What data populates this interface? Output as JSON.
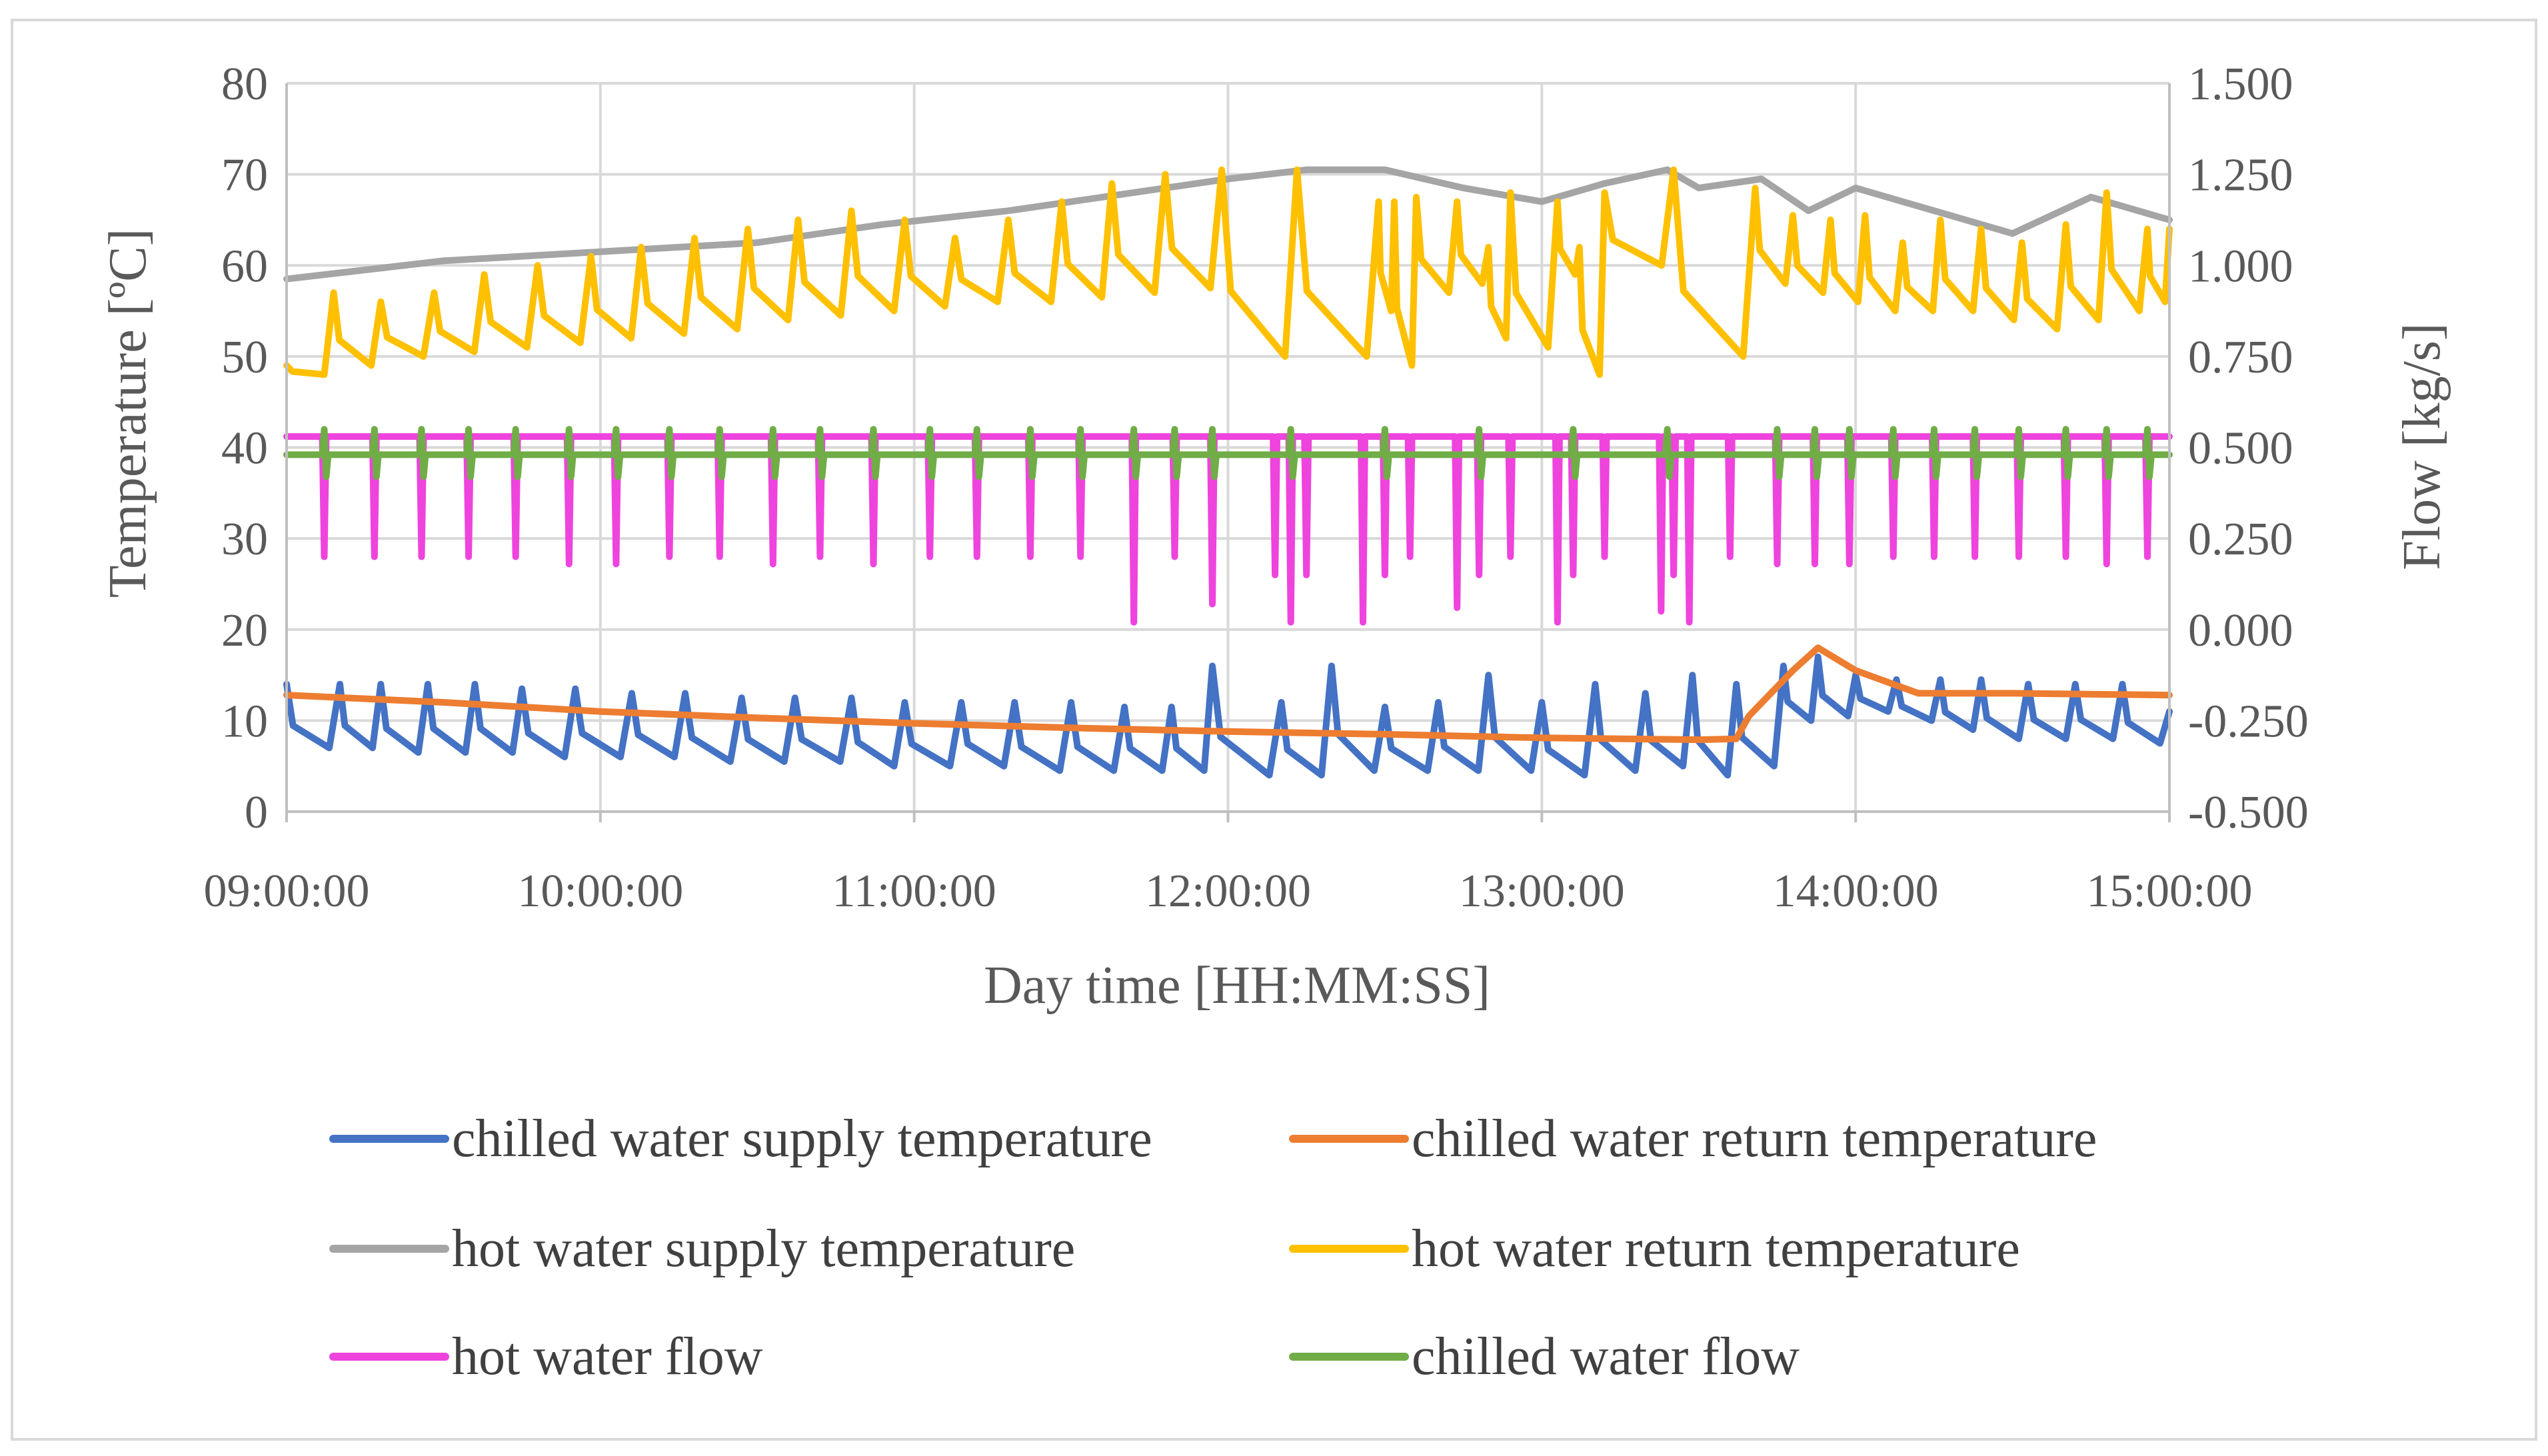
{
  "chart_data": {
    "type": "line",
    "title": "",
    "xlabel": "Day time [HH:MM:SS]",
    "ylabel": "Temperature [ºC]",
    "y2label": "Flow [kg/s]",
    "x_ticks": [
      "09:00:00",
      "10:00:00",
      "11:00:00",
      "12:00:00",
      "13:00:00",
      "14:00:00",
      "15:00:00"
    ],
    "xlim_hours": [
      9,
      15
    ],
    "ylim": [
      0,
      80
    ],
    "y_ticks": [
      "0",
      "10",
      "20",
      "30",
      "40",
      "50",
      "60",
      "70",
      "80"
    ],
    "y2lim": [
      -0.5,
      1.5
    ],
    "y2_ticks": [
      "-0.500",
      "-0.250",
      "0.000",
      "0.250",
      "0.500",
      "0.750",
      "1.000",
      "1.250",
      "1.500"
    ],
    "grid": true,
    "legend_position": "bottom",
    "series": [
      {
        "name": "chilled water supply temperature",
        "color": "#4472C4",
        "axis": "left",
        "style": "sawtooth",
        "peaks": [
          9.0,
          9.17,
          9.3,
          9.45,
          9.6,
          9.75,
          9.92,
          10.1,
          10.27,
          10.45,
          10.62,
          10.8,
          10.97,
          11.15,
          11.32,
          11.5,
          11.67,
          11.82,
          11.95,
          12.17,
          12.33,
          12.5,
          12.67,
          12.83,
          13.0,
          13.17,
          13.33,
          13.48,
          13.62,
          13.77,
          13.88,
          14.0,
          14.13,
          14.27,
          14.4,
          14.55,
          14.7,
          14.85,
          15.0
        ],
        "peak_values": [
          14,
          14,
          14,
          14,
          14,
          13.5,
          13.5,
          13,
          13,
          12.5,
          12.5,
          12.5,
          12,
          12,
          12,
          12,
          11.5,
          11.5,
          16,
          12,
          16,
          11.5,
          12,
          15,
          12,
          14,
          13,
          15,
          14,
          16,
          17,
          15,
          14.5,
          14.5,
          14.5,
          14,
          14,
          14,
          11
        ],
        "trough_values": [
          7,
          7,
          6.5,
          6.5,
          6.5,
          6,
          6,
          6,
          5.5,
          5.5,
          5.5,
          5,
          5,
          5,
          4.5,
          4.5,
          4.5,
          4.5,
          4,
          4,
          4.5,
          4.5,
          4.5,
          4.5,
          4,
          4.5,
          5,
          4,
          5,
          10,
          10.5,
          11,
          10,
          9,
          8,
          8,
          8,
          7.5,
          7.5
        ]
      },
      {
        "name": "chilled water return temperature",
        "color": "#ED7D31",
        "axis": "left",
        "style": "smooth",
        "x": [
          9.0,
          9.5,
          10.0,
          10.5,
          11.0,
          11.5,
          12.0,
          12.5,
          13.0,
          13.5,
          13.62,
          13.66,
          13.8,
          13.88,
          14.0,
          14.2,
          14.5,
          15.0
        ],
        "values": [
          12.8,
          12.0,
          11.0,
          10.3,
          9.7,
          9.2,
          8.8,
          8.5,
          8.1,
          7.9,
          8.0,
          10.5,
          15.5,
          18.0,
          15.5,
          13.0,
          13.0,
          12.8
        ]
      },
      {
        "name": "hot water supply temperature",
        "color": "#A5A5A5",
        "axis": "left",
        "style": "smooth",
        "x": [
          9.0,
          9.5,
          10.0,
          10.5,
          10.9,
          11.3,
          11.6,
          12.0,
          12.25,
          12.5,
          12.75,
          13.0,
          13.2,
          13.4,
          13.5,
          13.7,
          13.85,
          14.0,
          14.2,
          14.5,
          14.75,
          15.0
        ],
        "values": [
          58.5,
          60.5,
          61.5,
          62.5,
          64.5,
          66.0,
          67.5,
          69.5,
          70.5,
          70.5,
          68.5,
          67.0,
          69.0,
          70.5,
          68.5,
          69.5,
          66.0,
          68.5,
          66.5,
          63.5,
          67.5,
          65.0
        ]
      },
      {
        "name": "hot water return temperature",
        "color": "#FFC000",
        "axis": "left",
        "style": "sawtooth",
        "peaks": [
          9.0,
          9.15,
          9.3,
          9.47,
          9.63,
          9.8,
          9.97,
          10.13,
          10.3,
          10.47,
          10.63,
          10.8,
          10.97,
          11.13,
          11.3,
          11.47,
          11.63,
          11.8,
          11.98,
          12.22,
          12.48,
          12.53,
          12.6,
          12.73,
          12.83,
          12.9,
          13.05,
          13.12,
          13.2,
          13.42,
          13.68,
          13.8,
          13.92,
          14.03,
          14.15,
          14.27,
          14.4,
          14.53,
          14.67,
          14.8,
          14.93,
          15.0
        ],
        "peak_values": [
          49,
          57,
          56,
          57,
          59,
          60,
          61,
          62,
          63,
          64,
          65,
          66,
          65,
          63,
          65,
          67,
          69,
          70,
          70.5,
          70.5,
          67,
          67,
          67.5,
          67,
          62,
          68,
          67,
          62,
          68,
          70.5,
          68.5,
          65.5,
          65,
          65.5,
          62.5,
          65,
          64,
          62.5,
          64.5,
          68,
          64,
          64
        ],
        "trough_values": [
          48,
          49,
          50,
          50.5,
          51,
          51.5,
          52,
          52.5,
          53,
          54,
          54.5,
          55,
          55.5,
          56,
          56,
          56.5,
          57,
          57.5,
          50,
          50,
          55,
          49,
          57,
          58,
          52,
          51,
          59,
          48,
          60,
          50,
          58,
          57,
          56,
          55,
          55,
          55,
          54,
          53,
          54,
          55,
          56,
          56
        ]
      },
      {
        "name": "hot water flow",
        "color": "#EE44DD",
        "axis": "right",
        "style": "dips",
        "base": 0.53,
        "dips_x": [
          9.12,
          9.28,
          9.43,
          9.58,
          9.73,
          9.9,
          10.05,
          10.22,
          10.38,
          10.55,
          10.7,
          10.87,
          11.05,
          11.2,
          11.37,
          11.53,
          11.7,
          11.83,
          11.95,
          12.15,
          12.2,
          12.25,
          12.43,
          12.5,
          12.58,
          12.73,
          12.8,
          12.9,
          13.05,
          13.1,
          13.2,
          13.38,
          13.42,
          13.47,
          13.6,
          13.75,
          13.87,
          13.98,
          14.12,
          14.25,
          14.38,
          14.52,
          14.67,
          14.8,
          14.93
        ],
        "dips_values": [
          0.2,
          0.2,
          0.2,
          0.2,
          0.2,
          0.18,
          0.18,
          0.2,
          0.2,
          0.18,
          0.2,
          0.18,
          0.2,
          0.2,
          0.2,
          0.2,
          0.02,
          0.2,
          0.07,
          0.15,
          0.02,
          0.15,
          0.02,
          0.15,
          0.2,
          0.06,
          0.15,
          0.2,
          0.02,
          0.15,
          0.2,
          0.05,
          0.15,
          0.02,
          0.2,
          0.18,
          0.18,
          0.18,
          0.2,
          0.2,
          0.2,
          0.2,
          0.2,
          0.18,
          0.2
        ]
      },
      {
        "name": "chilled water flow",
        "color": "#70AD47",
        "axis": "right",
        "style": "spikes",
        "base": 0.48,
        "spikes_x": [
          9.12,
          9.28,
          9.43,
          9.58,
          9.73,
          9.9,
          10.05,
          10.22,
          10.38,
          10.55,
          10.7,
          10.87,
          11.05,
          11.2,
          11.37,
          11.53,
          11.7,
          11.83,
          11.95,
          12.2,
          12.5,
          12.8,
          13.1,
          13.4,
          13.75,
          13.87,
          13.98,
          14.12,
          14.25,
          14.38,
          14.52,
          14.67,
          14.8,
          14.93
        ]
      }
    ]
  }
}
